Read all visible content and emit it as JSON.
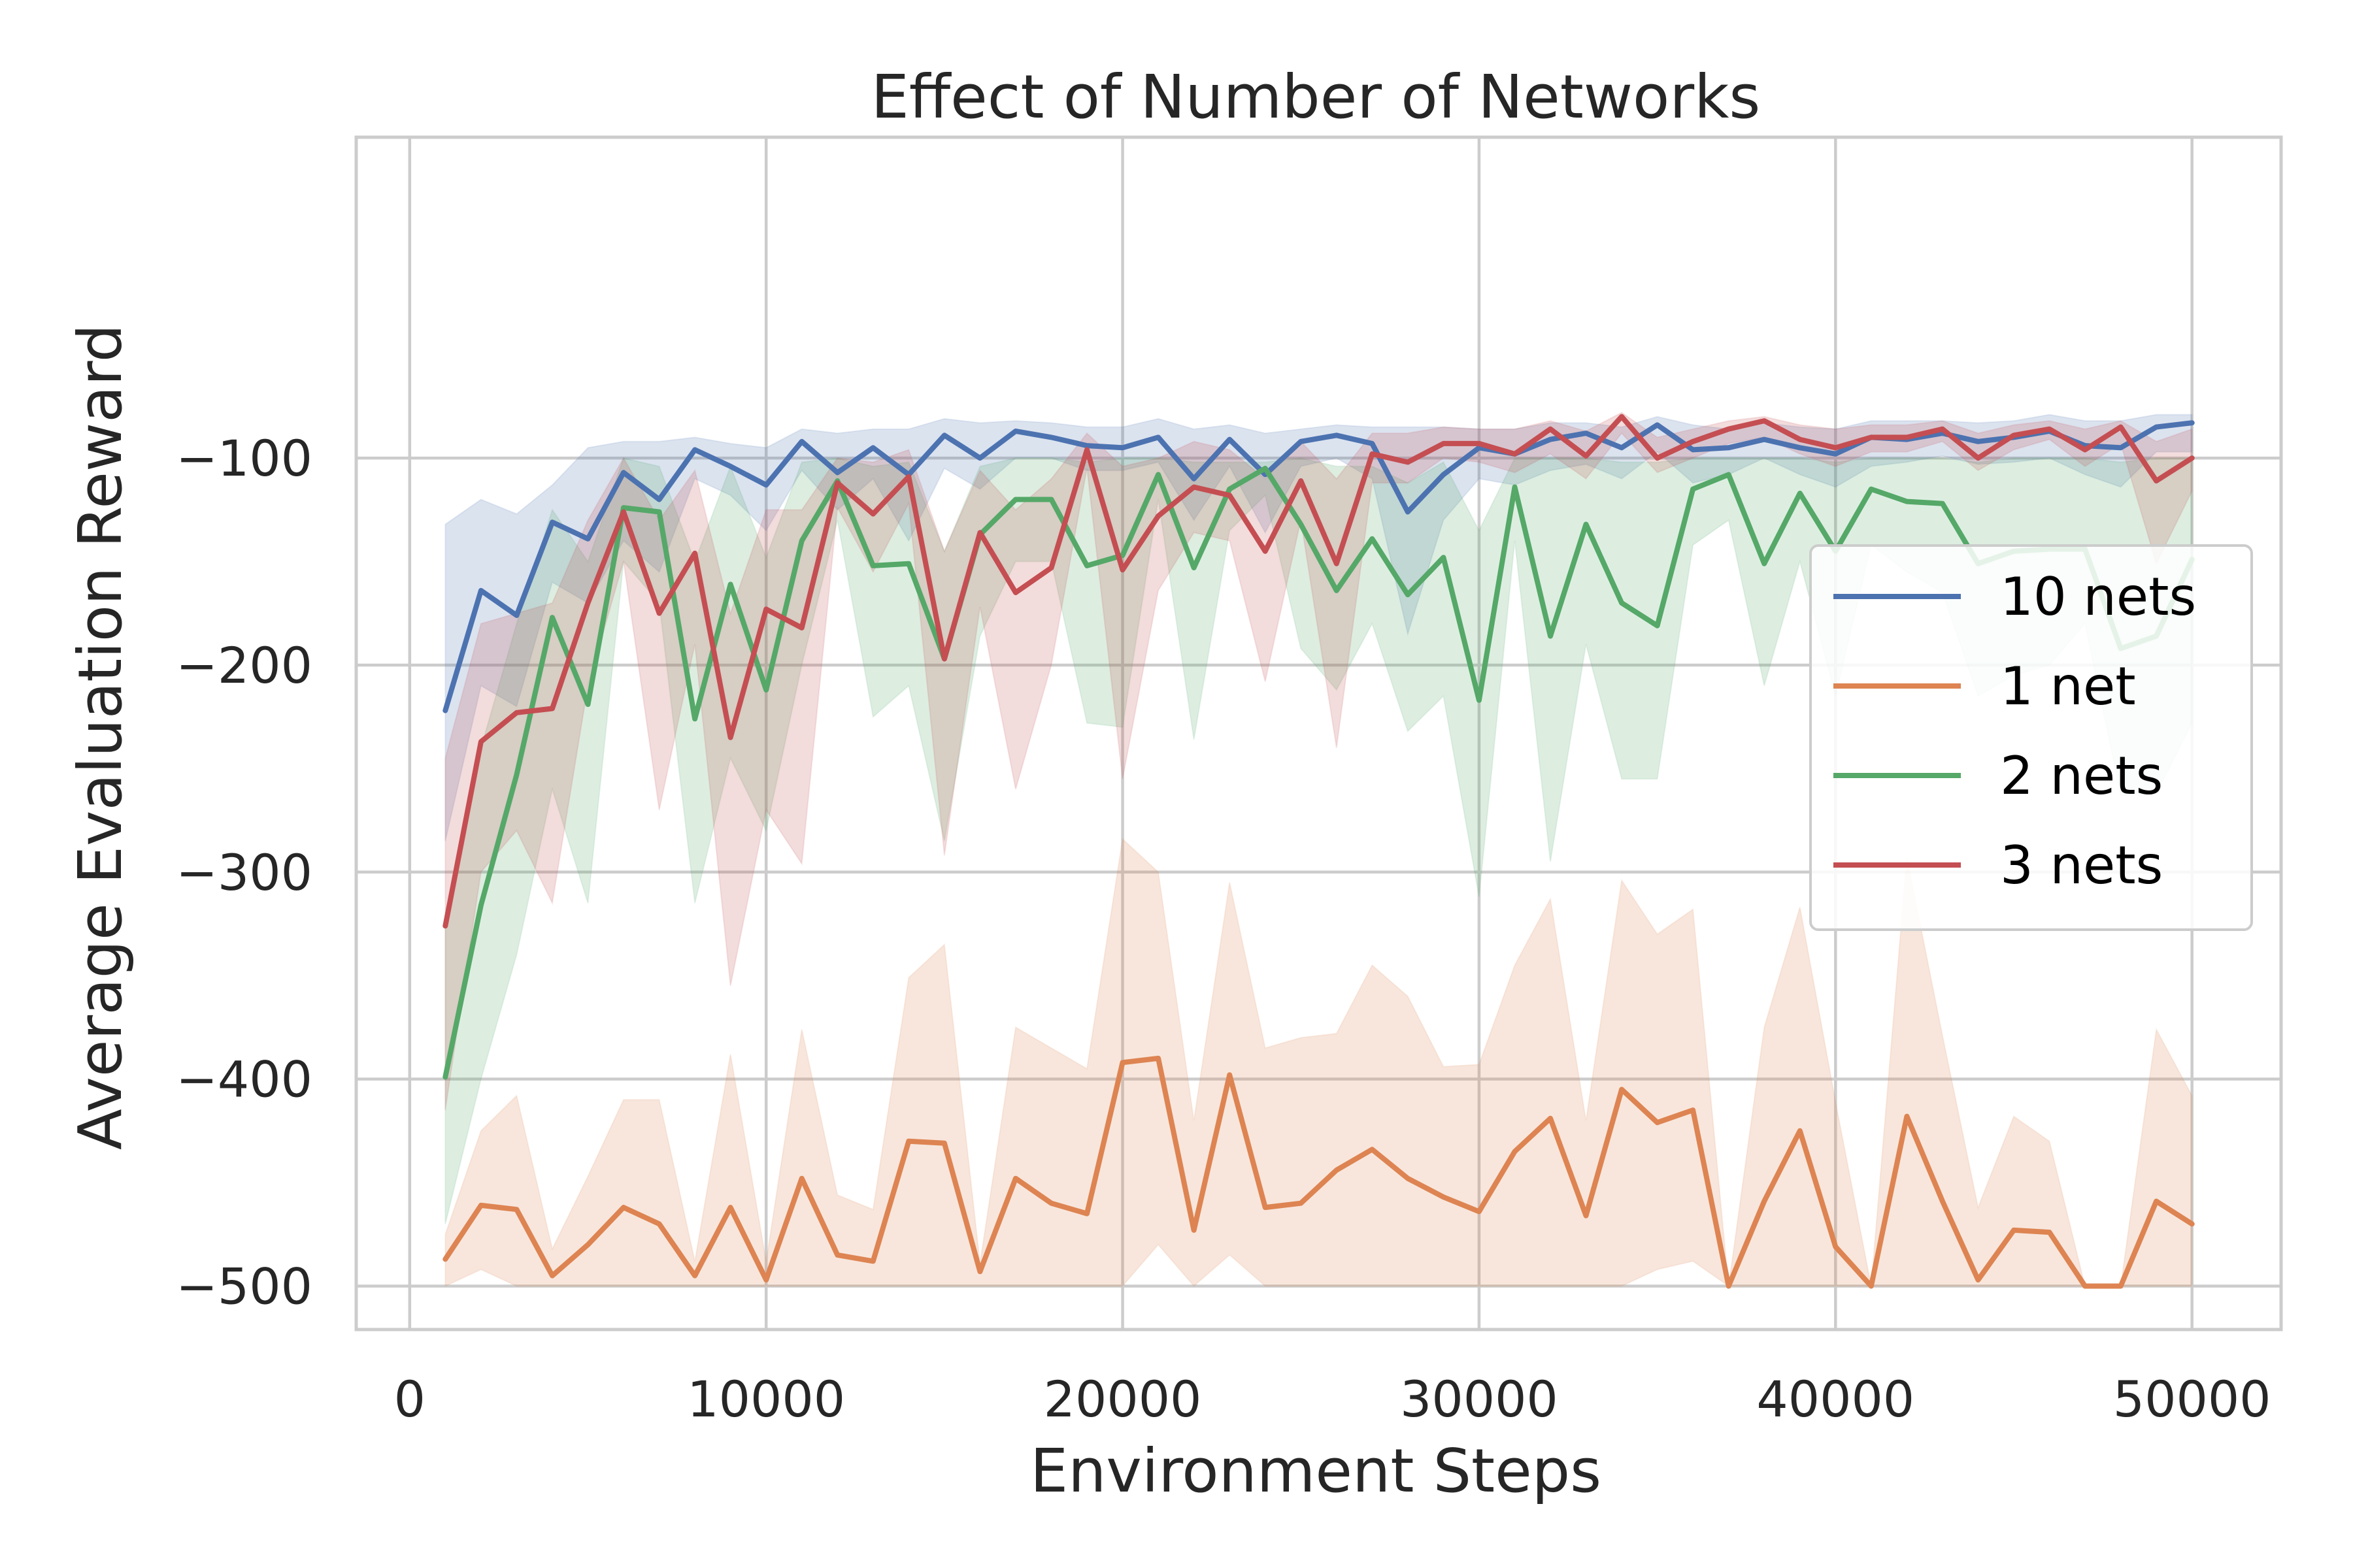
{
  "chart_data": {
    "type": "line",
    "title": "Effect of Number of Networks",
    "xlabel": "Environment Steps",
    "ylabel": "Average Evaluation Reward",
    "xlim": [
      -1500,
      52500
    ],
    "ylim": [
      -521,
      55
    ],
    "xticks": [
      "0",
      "10000",
      "20000",
      "30000",
      "40000",
      "50000"
    ],
    "xtick_values": [
      0,
      10000,
      20000,
      30000,
      40000,
      50000
    ],
    "yticks": [
      "−100",
      "−200",
      "−300",
      "−400",
      "−500"
    ],
    "ytick_values": [
      -100,
      -200,
      -300,
      -400,
      -500
    ],
    "grid": true,
    "legend_position": "center-right",
    "x": [
      1000,
      2000,
      3000,
      4000,
      5000,
      6000,
      7000,
      8000,
      9000,
      10000,
      11000,
      12000,
      13000,
      14000,
      15000,
      16000,
      17000,
      18000,
      19000,
      20000,
      21000,
      22000,
      23000,
      24000,
      25000,
      26000,
      27000,
      28000,
      29000,
      30000,
      31000,
      32000,
      33000,
      34000,
      35000,
      36000,
      37000,
      38000,
      39000,
      40000,
      41000,
      42000,
      43000,
      44000,
      45000,
      46000,
      47000,
      48000,
      49000,
      50000
    ],
    "series": [
      {
        "name": "10 nets",
        "color": "#4c72b0",
        "values": [
          -222,
          -164,
          -176,
          -131,
          -139,
          -107,
          -120,
          -96,
          -104,
          -113,
          -92,
          -107,
          -95,
          -108,
          -89,
          -100,
          -87,
          -90,
          -94,
          -95,
          -90,
          -110,
          -91,
          -108,
          -92,
          -89,
          -93,
          -126,
          -108,
          -95,
          -98,
          -91,
          -88,
          -95,
          -84,
          -96,
          -95,
          -91,
          -95,
          -98,
          -90,
          -91,
          -88,
          -92,
          -90,
          -87,
          -94,
          -95,
          -85,
          -83
        ],
        "upper": [
          -132,
          -120,
          -127,
          -113,
          -95,
          -92,
          -92,
          -90,
          -93,
          -95,
          -86,
          -88,
          -86,
          -86,
          -81,
          -83,
          -82,
          -83,
          -85,
          -85,
          -81,
          -86,
          -84,
          -88,
          -86,
          -84,
          -85,
          -85,
          -85,
          -86,
          -86,
          -83,
          -83,
          -85,
          -80,
          -84,
          -86,
          -83,
          -85,
          -86,
          -82,
          -82,
          -82,
          -83,
          -82,
          -79,
          -82,
          -82,
          -79,
          -79
        ],
        "lower": [
          -285,
          -210,
          -220,
          -160,
          -170,
          -140,
          -155,
          -110,
          -118,
          -135,
          -106,
          -125,
          -110,
          -140,
          -105,
          -115,
          -100,
          -100,
          -106,
          -106,
          -102,
          -130,
          -104,
          -136,
          -104,
          -100,
          -110,
          -185,
          -130,
          -110,
          -113,
          -106,
          -103,
          -110,
          -97,
          -112,
          -108,
          -100,
          -108,
          -114,
          -104,
          -102,
          -99,
          -103,
          -102,
          -100,
          -108,
          -114,
          -97,
          -97
        ]
      },
      {
        "name": "1 net",
        "color": "#dd8452",
        "values": [
          -487,
          -461,
          -463,
          -495,
          -480,
          -462,
          -470,
          -495,
          -462,
          -497,
          -448,
          -485,
          -488,
          -430,
          -431,
          -493,
          -448,
          -460,
          -465,
          -392,
          -390,
          -473,
          -398,
          -462,
          -460,
          -444,
          -434,
          -448,
          -457,
          -464,
          -435,
          -419,
          -466,
          -405,
          -421,
          -415,
          -500,
          -459,
          -425,
          -481,
          -500,
          -418,
          -459,
          -497,
          -473,
          -474,
          -500,
          -500,
          -459,
          -470
        ],
        "upper": [
          -475,
          -425,
          -408,
          -482,
          -447,
          -410,
          -410,
          -488,
          -388,
          -488,
          -376,
          -456,
          -463,
          -351,
          -335,
          -489,
          -375,
          -385,
          -395,
          -284,
          -300,
          -420,
          -305,
          -385,
          -380,
          -378,
          -345,
          -360,
          -394,
          -393,
          -345,
          -313,
          -420,
          -304,
          -330,
          -318,
          -500,
          -375,
          -317,
          -411,
          -500,
          -293,
          -379,
          -462,
          -418,
          -430,
          -500,
          -500,
          -376,
          -408
        ],
        "lower": [
          -500,
          -492,
          -500,
          -500,
          -500,
          -500,
          -500,
          -500,
          -500,
          -500,
          -500,
          -500,
          -500,
          -500,
          -500,
          -500,
          -500,
          -500,
          -500,
          -500,
          -480,
          -500,
          -485,
          -500,
          -500,
          -500,
          -500,
          -500,
          -500,
          -500,
          -500,
          -500,
          -500,
          -500,
          -492,
          -488,
          -500,
          -500,
          -500,
          -500,
          -500,
          -500,
          -500,
          -500,
          -500,
          -500,
          -500,
          -500,
          -500,
          -500
        ]
      },
      {
        "name": "2 nets",
        "color": "#55a868",
        "values": [
          -399,
          -316,
          -253,
          -177,
          -219,
          -124,
          -126,
          -226,
          -161,
          -212,
          -140,
          -111,
          -152,
          -151,
          -197,
          -137,
          -120,
          -120,
          -152,
          -147,
          -108,
          -153,
          -115,
          -105,
          -132,
          -164,
          -139,
          -166,
          -148,
          -217,
          -114,
          -186,
          -132,
          -170,
          -181,
          -115,
          -108,
          -151,
          -117,
          -145,
          -115,
          -121,
          -122,
          -151,
          -145,
          -144,
          -144,
          -192,
          -186,
          -149
        ],
        "upper": [
          -325,
          -240,
          -180,
          -125,
          -150,
          -100,
          -104,
          -150,
          -104,
          -148,
          -102,
          -100,
          -104,
          -102,
          -145,
          -104,
          -100,
          -100,
          -102,
          -100,
          -100,
          -102,
          -102,
          -102,
          -100,
          -104,
          -104,
          -112,
          -102,
          -135,
          -100,
          -100,
          -100,
          -102,
          -102,
          -100,
          -100,
          -100,
          -100,
          -102,
          -100,
          -100,
          -100,
          -102,
          -100,
          -100,
          -100,
          -102,
          -100,
          -100
        ],
        "lower": [
          -470,
          -400,
          -340,
          -260,
          -315,
          -150,
          -170,
          -315,
          -245,
          -280,
          -200,
          -130,
          -225,
          -210,
          -285,
          -186,
          -150,
          -150,
          -228,
          -230,
          -120,
          -236,
          -135,
          -118,
          -192,
          -212,
          -180,
          -232,
          -215,
          -312,
          -140,
          -295,
          -190,
          -255,
          -255,
          -142,
          -130,
          -210,
          -150,
          -215,
          -142,
          -155,
          -165,
          -215,
          -205,
          -200,
          -180,
          -263,
          -262,
          -228
        ]
      },
      {
        "name": "3 nets",
        "color": "#c44e52",
        "values": [
          -326,
          -237,
          -223,
          -221,
          -170,
          -126,
          -175,
          -146,
          -235,
          -173,
          -182,
          -112,
          -127,
          -109,
          -197,
          -136,
          -165,
          -153,
          -96,
          -154,
          -128,
          -114,
          -118,
          -145,
          -111,
          -151,
          -98,
          -102,
          -93,
          -93,
          -98,
          -86,
          -99,
          -80,
          -100,
          -92,
          -86,
          -82,
          -91,
          -95,
          -90,
          -90,
          -86,
          -100,
          -89,
          -86,
          -96,
          -85,
          -111,
          -100
        ],
        "upper": [
          -245,
          -180,
          -175,
          -170,
          -130,
          -100,
          -130,
          -106,
          -175,
          -125,
          -125,
          -100,
          -102,
          -96,
          -145,
          -106,
          -125,
          -110,
          -88,
          -104,
          -100,
          -92,
          -96,
          -110,
          -92,
          -110,
          -88,
          -88,
          -85,
          -86,
          -86,
          -82,
          -87,
          -78,
          -90,
          -86,
          -82,
          -80,
          -84,
          -86,
          -84,
          -84,
          -82,
          -88,
          -84,
          -82,
          -86,
          -82,
          -92,
          -86
        ],
        "lower": [
          -415,
          -300,
          -280,
          -315,
          -210,
          -150,
          -270,
          -190,
          -355,
          -270,
          -296,
          -124,
          -155,
          -122,
          -292,
          -172,
          -260,
          -200,
          -105,
          -255,
          -164,
          -136,
          -140,
          -208,
          -130,
          -240,
          -112,
          -112,
          -100,
          -102,
          -107,
          -98,
          -110,
          -88,
          -107,
          -100,
          -93,
          -90,
          -98,
          -104,
          -97,
          -97,
          -92,
          -106,
          -96,
          -91,
          -104,
          -93,
          -151,
          -116
        ]
      }
    ]
  }
}
